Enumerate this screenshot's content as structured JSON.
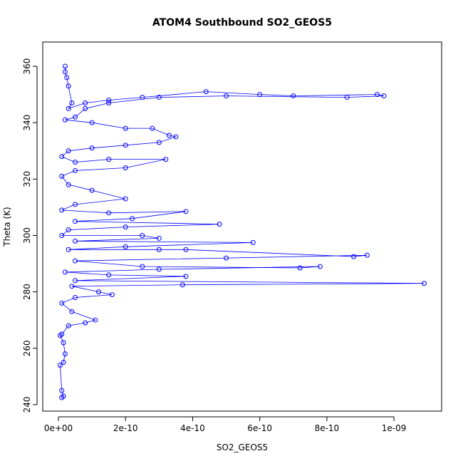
{
  "chart_data": {
    "type": "line",
    "title": "ATOM4 Southbound SO2_GEOS5",
    "xlabel": "SO2_GEOS5",
    "ylabel": "Theta (K)",
    "color": "#0000ff",
    "x": [
      2e-11,
      2e-11,
      2.5e-11,
      3e-11,
      4e-11,
      3e-11,
      8e-11,
      1.5e-10,
      2.5e-10,
      4.4e-10,
      6e-10,
      7e-10,
      9.5e-10,
      9.7e-10,
      8.6e-10,
      5e-10,
      3e-10,
      1.5e-10,
      8e-11,
      5e-11,
      2e-11,
      1e-10,
      2e-10,
      2.8e-10,
      3.3e-10,
      3.5e-10,
      3e-10,
      2e-10,
      1e-10,
      3e-11,
      1e-11,
      5e-11,
      1.5e-10,
      3.2e-10,
      2e-10,
      5e-11,
      1e-11,
      3e-11,
      1e-10,
      2e-10,
      5e-11,
      1e-11,
      1.5e-10,
      3.8e-10,
      2.2e-10,
      5e-11,
      4.8e-10,
      2e-10,
      3e-11,
      1e-11,
      2.5e-10,
      3e-10,
      5e-11,
      5.8e-10,
      2e-10,
      3e-11,
      3e-10,
      3.8e-10,
      8.8e-10,
      9.2e-10,
      5e-10,
      5e-11,
      2.5e-10,
      7.2e-10,
      7.8e-10,
      3e-10,
      2e-11,
      1.5e-10,
      3.8e-10,
      5e-11,
      1.09e-09,
      3.7e-10,
      4e-11,
      1.2e-10,
      1.6e-10,
      5e-11,
      1e-11,
      4e-11,
      1.1e-10,
      8e-11,
      3e-11,
      1e-11,
      5e-12,
      1.5e-11,
      2e-11,
      1.5e-11,
      5e-12,
      1e-11,
      1.5e-11,
      1e-11
    ],
    "values": [
      360,
      358,
      356,
      353,
      347,
      345,
      347,
      348,
      349,
      351,
      350,
      349.5,
      350,
      349.5,
      349,
      349.5,
      349,
      347,
      345,
      342,
      341,
      340,
      338,
      338,
      335.5,
      335,
      333,
      332,
      331,
      330,
      328,
      326,
      327,
      327,
      324,
      323,
      321,
      318,
      316,
      313,
      311,
      309,
      308,
      308.5,
      306,
      305,
      304,
      303,
      302,
      300,
      300,
      299,
      298,
      297.5,
      296,
      295,
      295,
      295,
      292.5,
      293,
      292,
      291,
      289,
      288.5,
      289,
      288,
      287,
      286,
      285.5,
      284,
      283,
      282.5,
      282,
      280,
      279,
      278,
      276,
      273,
      270,
      269,
      268,
      265,
      264.5,
      262,
      258,
      255,
      254,
      245,
      243,
      242.5
    ],
    "xlim": [
      -4.67e-11,
      1.142e-09
    ],
    "ylim": [
      237.7,
      368.6
    ],
    "xticks": [
      {
        "value": 0,
        "label": "0e+00"
      },
      {
        "value": 2e-10,
        "label": "2e-10"
      },
      {
        "value": 4e-10,
        "label": "4e-10"
      },
      {
        "value": 6e-10,
        "label": "6e-10"
      },
      {
        "value": 8e-10,
        "label": "8e-10"
      },
      {
        "value": 1e-09,
        "label": "1e-09"
      }
    ],
    "yticks": [
      240,
      260,
      280,
      300,
      320,
      340,
      360
    ]
  }
}
